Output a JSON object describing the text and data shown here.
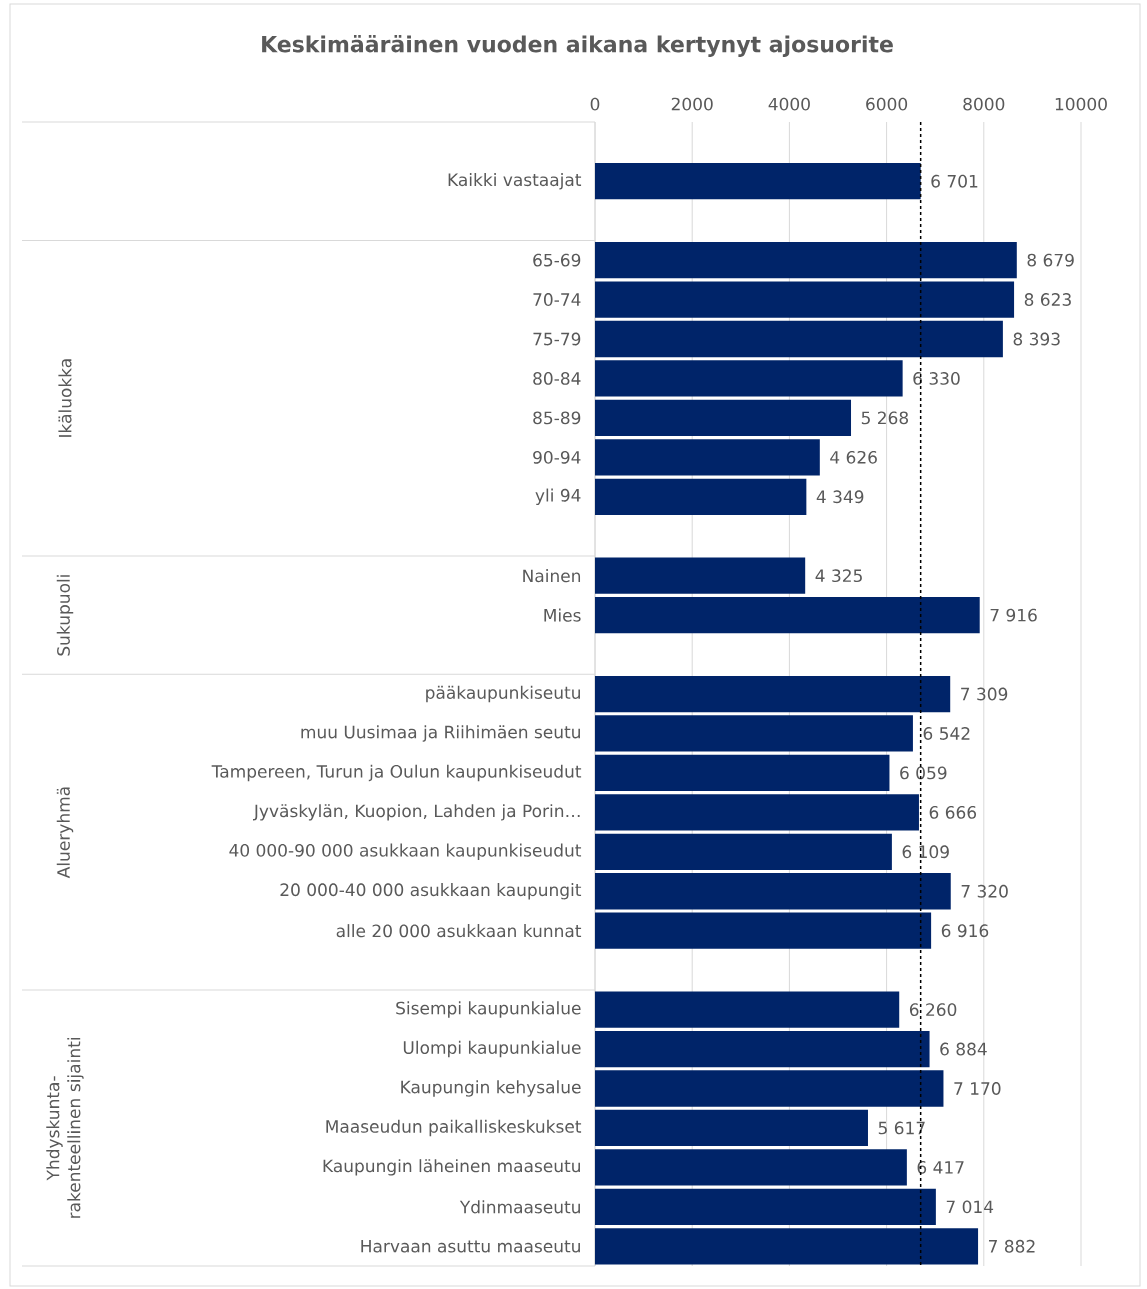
{
  "chart_data": {
    "type": "bar",
    "orientation": "horizontal",
    "title": "Keskimääräinen vuoden aikana kertynyt ajosuorite",
    "categories": [
      "Kaikki vastaajat",
      null,
      "65-69",
      "70-74",
      "75-79",
      "80-84",
      "85-89",
      "90-94",
      "yli 94",
      null,
      "Nainen",
      "Mies",
      null,
      "pääkaupunkiseutu",
      "muu Uusimaa ja Riihimäen seutu",
      "Tampereen, Turun ja Oulun kaupunkiseudut",
      "Jyväskylän, Kuopion, Lahden ja Porin…",
      "40 000-90 000 asukkaan kaupunkiseudut",
      "20 000-40 000 asukkaan kaupungit",
      "alle 20 000 asukkaan kunnat",
      null,
      "Sisempi kaupunkialue",
      "Ulompi kaupunkialue",
      "Kaupungin kehysalue",
      "Maaseudun paikalliskeskukset",
      "Kaupungin läheinen maaseutu",
      "Ydinmaaseutu",
      "Harvaan asuttu maaseutu"
    ],
    "values": [
      6701,
      null,
      8679,
      8623,
      8393,
      6330,
      5268,
      4626,
      4349,
      null,
      4325,
      7916,
      null,
      7309,
      6542,
      6059,
      6666,
      6109,
      7320,
      6916,
      null,
      6260,
      6884,
      7170,
      5617,
      6417,
      7014,
      7882
    ],
    "value_labels": [
      "6 701",
      null,
      "8 679",
      "8 623",
      "8 393",
      "6 330",
      "5 268",
      "4 626",
      "4 349",
      null,
      "4 325",
      "7 916",
      null,
      "7 309",
      "6 542",
      "6 059",
      "6 666",
      "6 109",
      "7 320",
      "6 916",
      null,
      "6 260",
      "6 884",
      "7 170",
      "5 617",
      "6 417",
      "7 014",
      "7 882"
    ],
    "color": "#002469",
    "xlim": [
      0,
      10000
    ],
    "xticks": [
      0,
      2000,
      4000,
      6000,
      8000,
      10000
    ],
    "grid": "x",
    "ref_lines": [
      {
        "axis": "x",
        "value": 6701,
        "color": "#000000",
        "line_style": "dashed"
      }
    ],
    "annotations": [
      "Ikäluokka",
      "Sukupuoli",
      "Alueryhmä",
      "Yhdyskunta-rakenteellinen sijainti"
    ]
  }
}
